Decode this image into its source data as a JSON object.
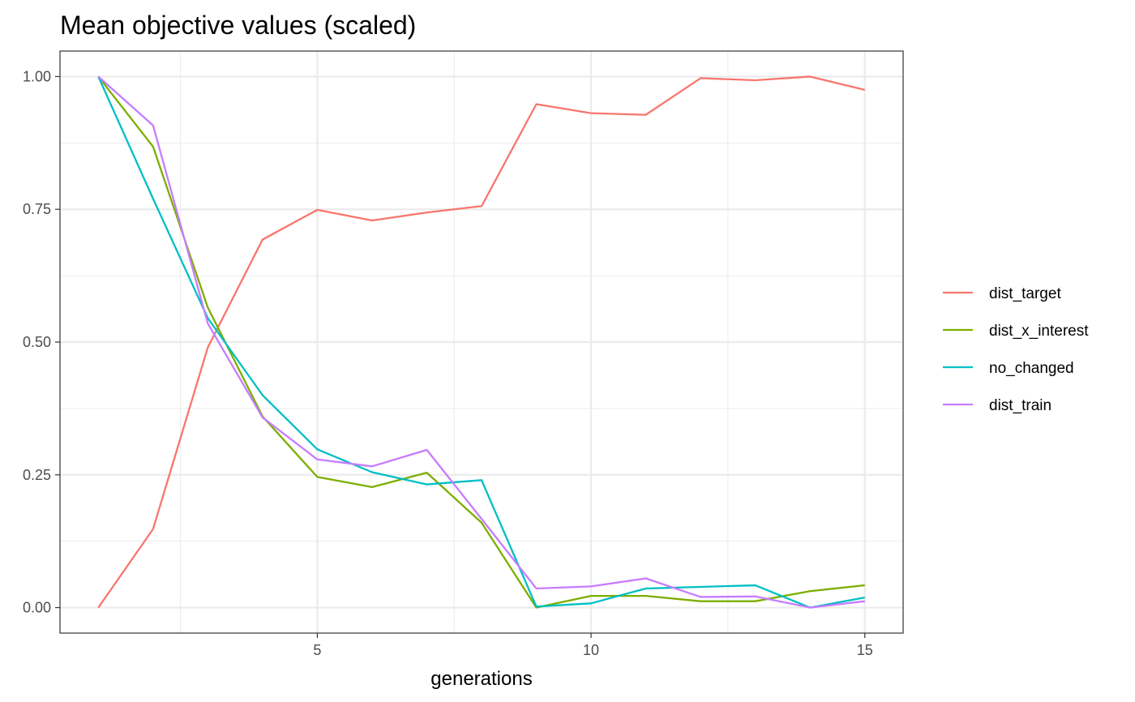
{
  "chart_data": {
    "type": "line",
    "title": "Mean objective values (scaled)",
    "xlabel": "generations",
    "ylabel": "",
    "xlim": [
      0.3,
      15.7
    ],
    "ylim": [
      -0.048,
      1.048
    ],
    "x": [
      1,
      2,
      3,
      4,
      5,
      6,
      7,
      8,
      9,
      10,
      11,
      12,
      13,
      14,
      15
    ],
    "x_ticks": [
      5,
      10,
      15
    ],
    "x_tick_labels": [
      "5",
      "10",
      "15"
    ],
    "x_minor_grid": [
      2.5,
      7.5,
      12.5
    ],
    "y_ticks": [
      0,
      0.25,
      0.5,
      0.75,
      1.0
    ],
    "y_tick_labels": [
      "0.00",
      "0.25",
      "0.50",
      "0.75",
      "1.00"
    ],
    "y_minor_grid": [
      0.125,
      0.375,
      0.625,
      0.875
    ],
    "grid": true,
    "legend_position": "right",
    "series": [
      {
        "name": "dist_target",
        "color": "#F8766D",
        "values": [
          0.0,
          0.148,
          0.49,
          0.693,
          0.749,
          0.729,
          0.744,
          0.756,
          0.948,
          0.931,
          0.928,
          0.997,
          0.993,
          1.0,
          0.975
        ]
      },
      {
        "name": "dist_x_interest",
        "color": "#7CAE00",
        "values": [
          1.0,
          0.868,
          0.565,
          0.36,
          0.246,
          0.227,
          0.254,
          0.16,
          0.0,
          0.022,
          0.022,
          0.012,
          0.012,
          0.031,
          0.042
        ]
      },
      {
        "name": "no_changed",
        "color": "#00BFC4",
        "values": [
          1.0,
          0.77,
          0.545,
          0.4,
          0.298,
          0.255,
          0.232,
          0.24,
          0.002,
          0.008,
          0.036,
          0.039,
          0.042,
          0.0,
          0.019
        ]
      },
      {
        "name": "dist_train",
        "color": "#C77CFF",
        "values": [
          1.0,
          0.908,
          0.535,
          0.358,
          0.279,
          0.266,
          0.297,
          0.167,
          0.036,
          0.04,
          0.055,
          0.02,
          0.021,
          0.0,
          0.012
        ]
      }
    ]
  }
}
